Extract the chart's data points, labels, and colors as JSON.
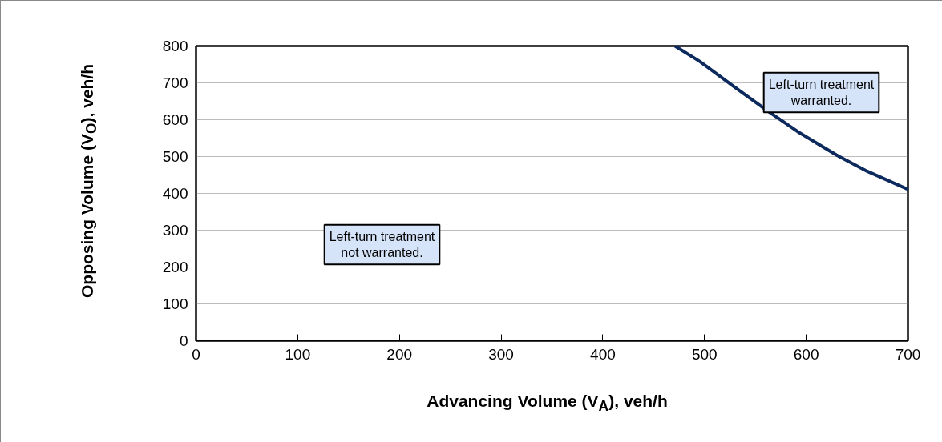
{
  "chart_data": {
    "type": "line",
    "xlabel": "Advancing Volume (V$_{A}$), veh/h",
    "ylabel": "Opposing Volume (V$_{O}$), veh/h",
    "x": [
      471,
      495,
      530,
      563,
      592,
      631,
      660,
      700
    ],
    "series": [
      {
        "color": "#0d2a5e",
        "values": [
          800,
          759,
          688,
          622,
          567,
          502,
          460,
          411
        ]
      }
    ],
    "xlim": [
      0,
      700
    ],
    "ylim": [
      0,
      800
    ],
    "xticks": [
      0,
      100,
      200,
      300,
      400,
      500,
      600,
      700
    ],
    "yticks": [
      0,
      100,
      200,
      300,
      400,
      500,
      600,
      700,
      800
    ],
    "grid": "y",
    "marker": "none",
    "line_style": "solid",
    "annotations": [
      "Left-turn treatment\nnot warranted.",
      "Left-turn treatment\nwarranted."
    ]
  }
}
